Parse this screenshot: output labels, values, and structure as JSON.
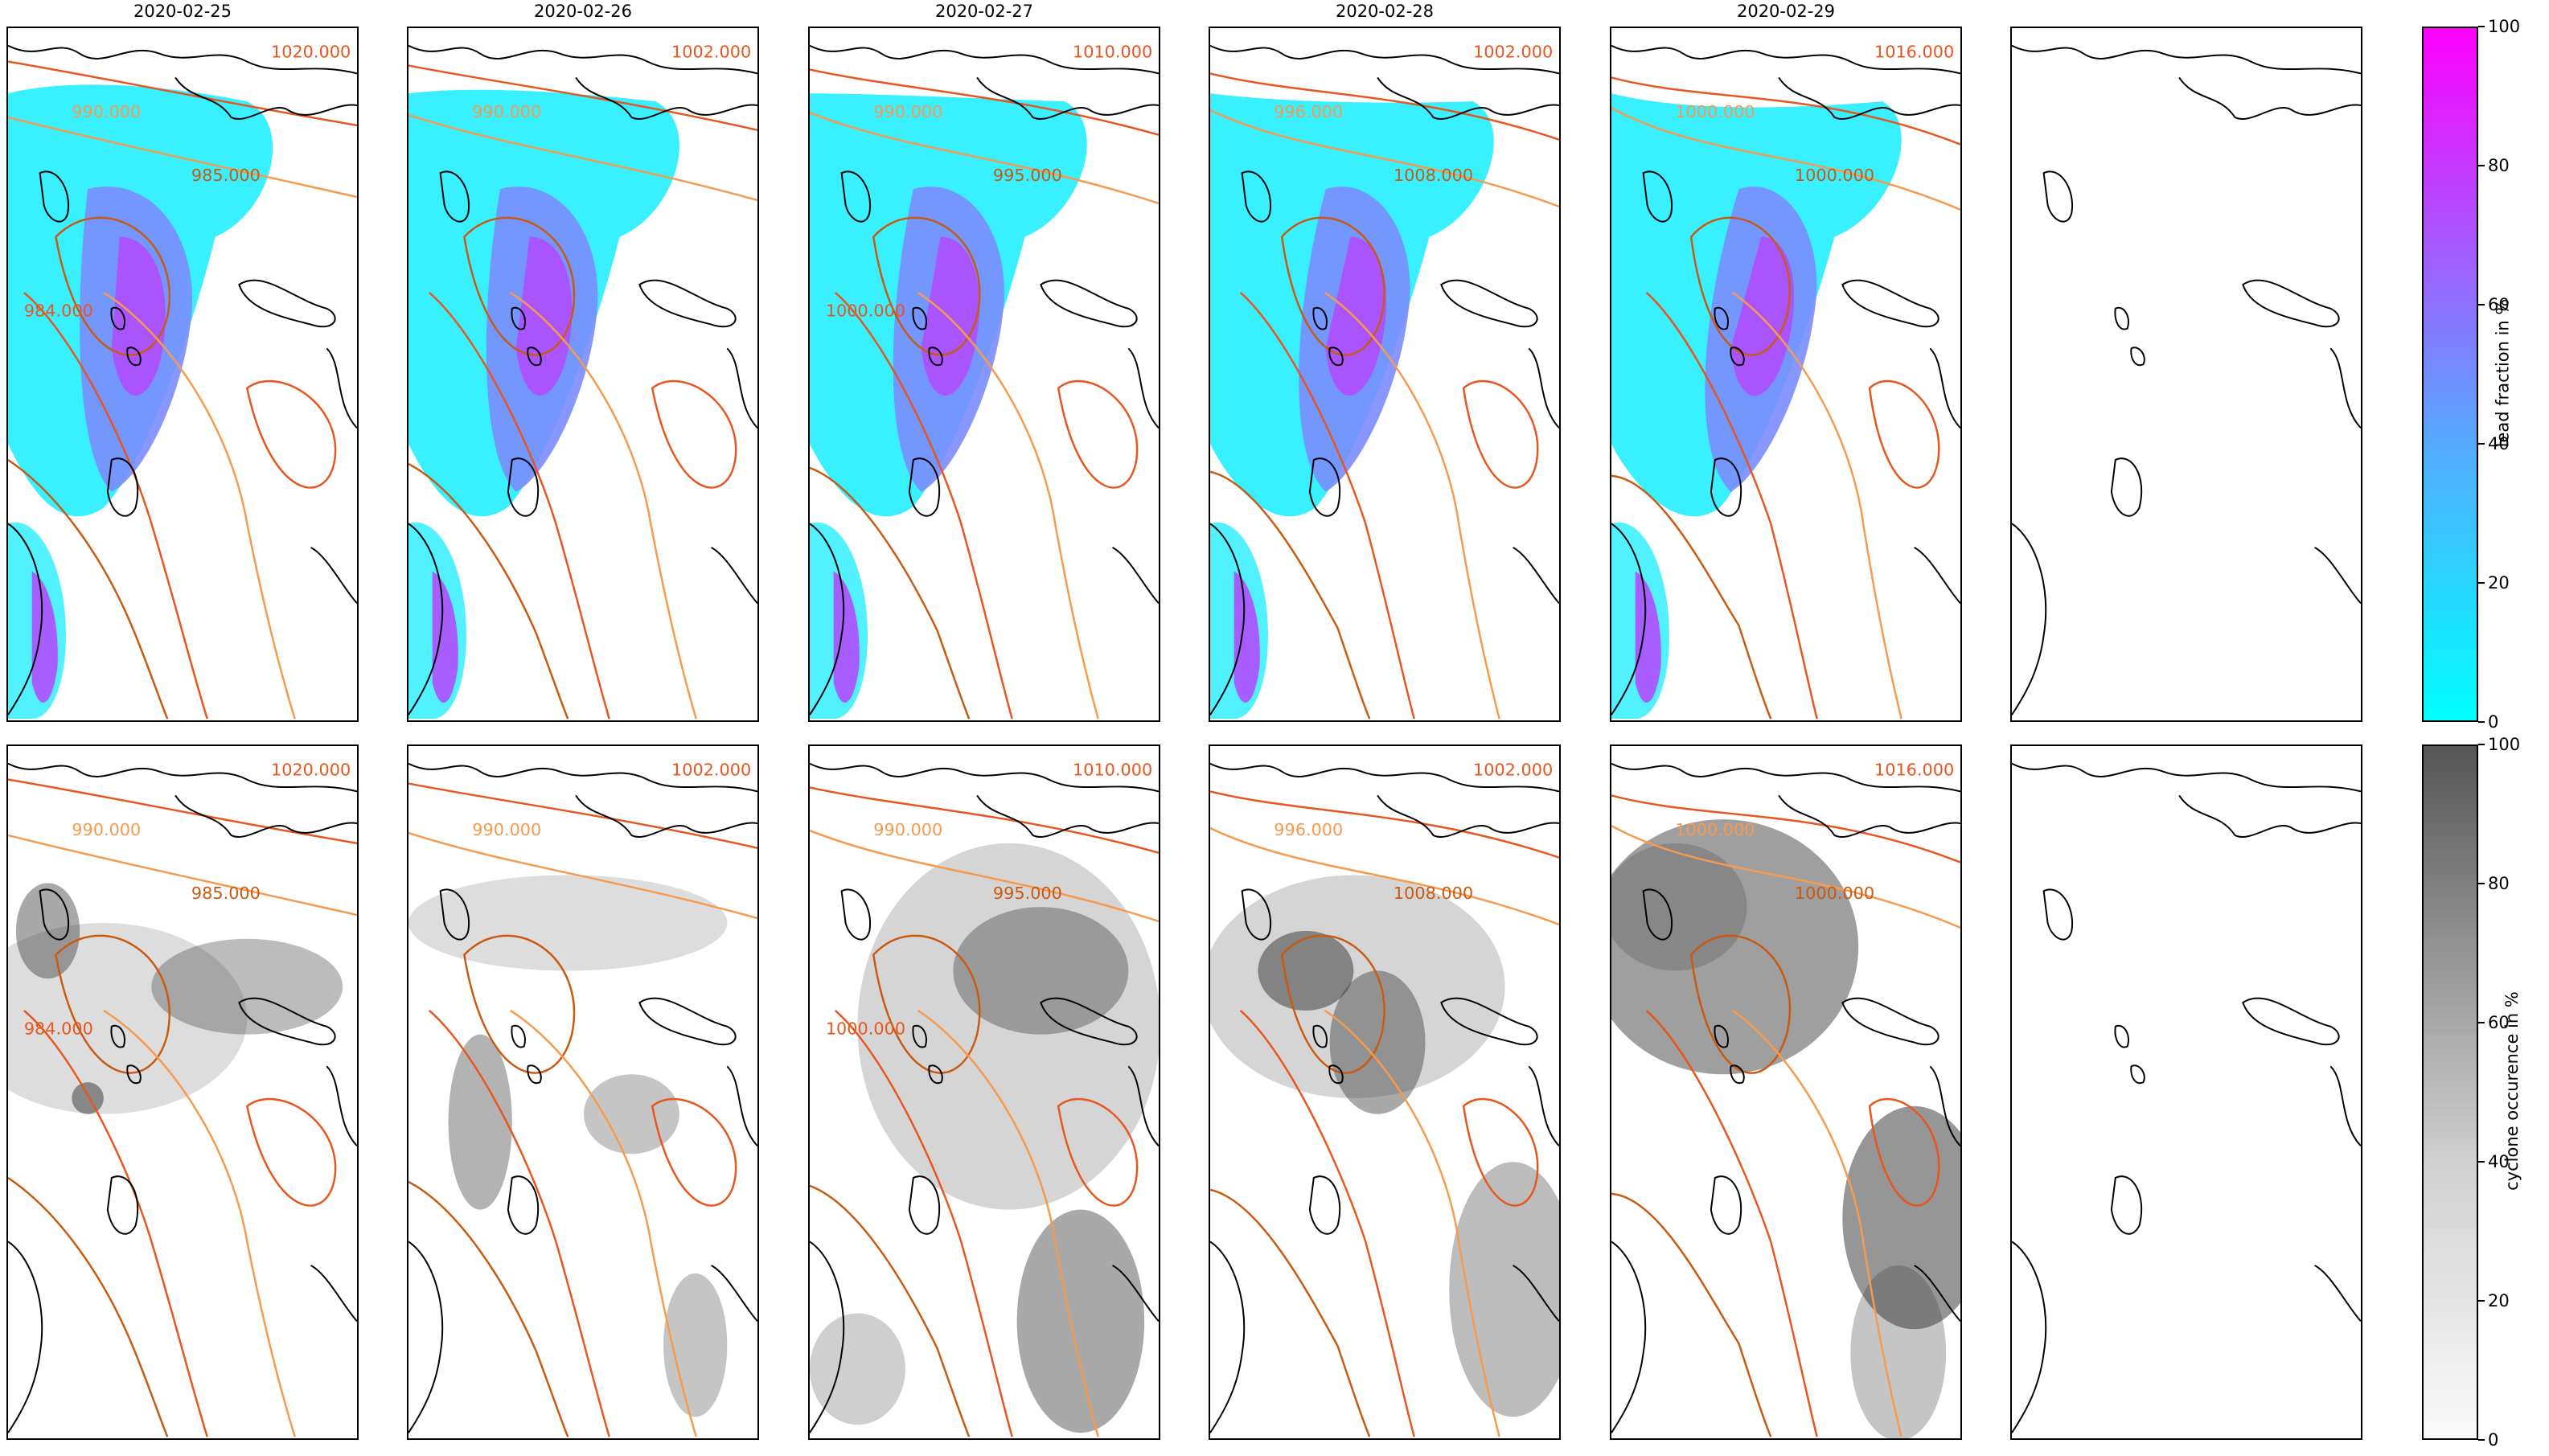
{
  "dates": [
    "2020-02-25",
    "2020-02-26",
    "2020-02-27",
    "2020-02-28",
    "2020-02-29"
  ],
  "rows": {
    "top": {
      "contour_labels": [
        [
          "1020.000",
          "990.000",
          "985.000",
          "984.000"
        ],
        [
          "1002.000",
          "990.000"
        ],
        [
          "1010.000",
          "990.000",
          "995.000",
          "1000.000"
        ],
        [
          "1002.000",
          "996.000",
          "1008.000"
        ],
        [
          "1016.000",
          "1000.000",
          "1000.000"
        ]
      ]
    },
    "bottom": {
      "contour_labels": [
        [
          "1020.000",
          "990.000",
          "985.000",
          "984.000"
        ],
        [
          "1002.000",
          "990.000"
        ],
        [
          "1010.000",
          "990.000",
          "995.000",
          "1000.000"
        ],
        [
          "1002.000",
          "996.000",
          "1008.000"
        ],
        [
          "1016.000",
          "1000.000",
          "1000.000"
        ]
      ]
    }
  },
  "colorbars": {
    "lead": {
      "label": "lead fraction in %",
      "ticks": [
        "0",
        "20",
        "40",
        "60",
        "80",
        "100"
      ],
      "colors": [
        "#00ffff",
        "#ff00ff"
      ]
    },
    "cyclone": {
      "label": "cyclone occurence in %",
      "ticks": [
        "0",
        "20",
        "40",
        "60",
        "80",
        "100"
      ],
      "colors": [
        "#fafafa",
        "#555555"
      ]
    }
  },
  "contour_colors": [
    "#e8561f",
    "#f59a4e",
    "#c85a12",
    "#7a8a4a"
  ]
}
